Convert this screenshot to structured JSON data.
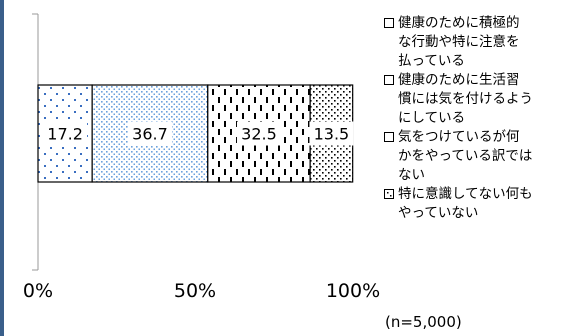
{
  "chart_data": {
    "type": "bar",
    "orientation": "horizontal",
    "stacked": true,
    "xlim": [
      0,
      100
    ],
    "x_tick_labels": [
      "0%",
      "50%",
      "100%"
    ],
    "series": [
      {
        "name": "健康のために積極的な行動や特に注意を払っている",
        "value": 17.2,
        "label": "17.2",
        "pattern": "sparse-dots",
        "color": "#3a6ec0"
      },
      {
        "name": "健康のために生活習慣には気を付けるようにしている",
        "value": 36.7,
        "label": "36.7",
        "pattern": "dense-dots",
        "color": "#6aa0dc"
      },
      {
        "name": "気をつけているが何かをやっている訳ではない",
        "value": 32.5,
        "label": "32.5",
        "pattern": "vertical-dashes",
        "color": "#000000"
      },
      {
        "name": "特に意識してない何もやっていない",
        "value": 13.5,
        "label": "13.5",
        "pattern": "checker-dots",
        "color": "#000000"
      }
    ],
    "legend_position": "right"
  },
  "legend": {
    "items": [
      {
        "lines": [
          "健康のために積極的",
          "な行動や特に注意を",
          "払っている"
        ]
      },
      {
        "lines": [
          "健康のために生活習",
          "慣には気を付けるよう",
          "にしている"
        ]
      },
      {
        "lines": [
          "気をつけているが何",
          "かをやっている訳では",
          "ない"
        ]
      },
      {
        "lines": [
          "特に意識してない何も",
          "やっていない"
        ]
      }
    ]
  },
  "note": "(n=5,000)"
}
